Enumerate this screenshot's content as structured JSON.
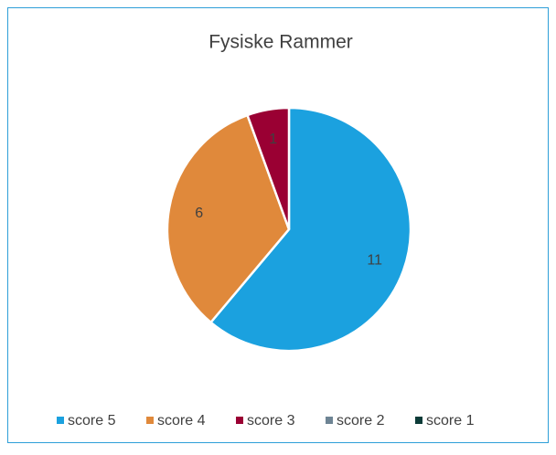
{
  "chart_data": {
    "type": "pie",
    "title": "Fysiske Rammer",
    "categories": [
      "score 5",
      "score 4",
      "score 3",
      "score 2",
      "score 1"
    ],
    "values": [
      11,
      6,
      1,
      0,
      0
    ],
    "colors": [
      "#1ba1df",
      "#e0893b",
      "#9a0033",
      "#6e8494",
      "#0c3b38"
    ],
    "legend": "bottom"
  }
}
